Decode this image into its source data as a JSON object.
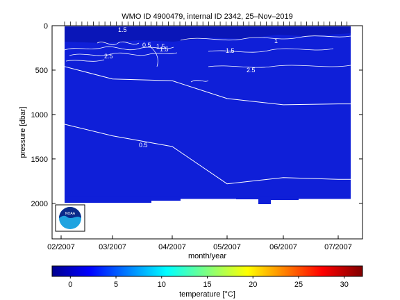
{
  "chart_data": {
    "type": "heatmap",
    "title": "WMO ID 4900479, internal ID 2342, 25–Nov–2019",
    "xlabel": "month/year",
    "ylabel": "pressure [dbar]",
    "x_ticks": [
      "02/2007",
      "03/2007",
      "04/2007",
      "05/2007",
      "06/2007",
      "07/2007"
    ],
    "y_ticks": [
      "0",
      "500",
      "1000",
      "1500",
      "2000"
    ],
    "y_tick_values": [
      0,
      500,
      1000,
      1500,
      2000
    ],
    "ylim": [
      0,
      2400
    ],
    "y_reversed": true,
    "profile_time_range": [
      "02/2007",
      "07/2007"
    ],
    "max_profile_depth_dbar": 1950,
    "deep_water_temperature_c": 0.3,
    "contour_labels": [
      "1.5",
      "0.5",
      "1.5",
      "2.5",
      "2.5",
      "1.5",
      "0.5",
      "1.5",
      "1"
    ],
    "isotherm_0_5_depth_dbar": [
      {
        "x": "02/2007",
        "y": 1100
      },
      {
        "x": "03/2007",
        "y": 1240
      },
      {
        "x": "04/2007",
        "y": 1360
      },
      {
        "x": "05/2007",
        "y": 1780
      },
      {
        "x": "06/2007",
        "y": 1710
      },
      {
        "x": "07/2007",
        "y": 1730
      }
    ],
    "isotherm_1_0_depth_dbar": [
      {
        "x": "02/2007",
        "y": 450
      },
      {
        "x": "03/2007",
        "y": 600
      },
      {
        "x": "04/2007",
        "y": 620
      },
      {
        "x": "05/2007",
        "y": 820
      },
      {
        "x": "06/2007",
        "y": 890
      },
      {
        "x": "07/2007",
        "y": 880
      }
    ],
    "colorbar": {
      "label": "temperature [°C]",
      "ticks": [
        "0",
        "5",
        "10",
        "15",
        "20",
        "25",
        "30"
      ],
      "tick_values": [
        0,
        5,
        10,
        15,
        20,
        25,
        30
      ],
      "range": [
        -2,
        32
      ],
      "colormap": "jet"
    }
  },
  "colors": {
    "field": "#0f1fd8",
    "surface": "#0a16b8",
    "contour": "#ffffff",
    "frame": "#000000"
  },
  "logo": {
    "name": "noaa-logo",
    "text": "NOAA"
  }
}
